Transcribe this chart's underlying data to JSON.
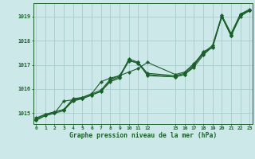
{
  "title": "Graphe pression niveau de la mer (hPa)",
  "bg_color": "#cce8e8",
  "grid_color": "#aacccc",
  "line_color": "#1a5e2a",
  "x_ticks": [
    0,
    1,
    2,
    3,
    4,
    5,
    6,
    7,
    8,
    9,
    10,
    11,
    12,
    15,
    16,
    17,
    18,
    19,
    20,
    21,
    22,
    23
  ],
  "x_tick_labels": [
    "0",
    "1",
    "2",
    "3",
    "4",
    "5",
    "6",
    "7",
    "8",
    "9",
    "10",
    "11",
    "12",
    "15",
    "16",
    "17",
    "18",
    "19",
    "20",
    "21",
    "22",
    "23"
  ],
  "xlim": [
    -0.3,
    23.3
  ],
  "ylim": [
    1014.55,
    1019.55
  ],
  "yticks": [
    1015,
    1016,
    1017,
    1018,
    1019
  ],
  "series": [
    {
      "x": [
        0,
        1,
        2,
        3,
        4,
        5,
        6,
        7,
        8,
        9,
        10,
        11,
        12,
        15,
        16,
        17,
        18,
        19,
        20,
        21,
        22,
        23
      ],
      "y": [
        1014.7,
        1014.9,
        1015.0,
        1015.1,
        1015.55,
        1015.6,
        1015.75,
        1015.9,
        1016.35,
        1016.5,
        1017.15,
        1017.1,
        1016.65,
        1016.55,
        1016.65,
        1017.0,
        1017.45,
        1017.75,
        1019.0,
        1018.25,
        1019.05,
        1019.25
      ]
    },
    {
      "x": [
        0,
        1,
        2,
        3,
        4,
        5,
        6,
        7,
        8,
        9,
        10,
        11,
        12,
        15,
        16,
        17,
        18,
        19,
        20,
        21,
        22,
        23
      ],
      "y": [
        1014.7,
        1014.9,
        1015.0,
        1015.5,
        1015.55,
        1015.65,
        1015.8,
        1016.3,
        1016.45,
        1016.55,
        1017.2,
        1017.05,
        1016.6,
        1016.5,
        1016.6,
        1016.9,
        1017.4,
        1017.75,
        1019.0,
        1018.2,
        1019.1,
        1019.25
      ]
    },
    {
      "x": [
        0,
        1,
        2,
        3,
        4,
        5,
        6,
        7,
        8,
        9,
        10,
        11,
        12,
        15,
        16,
        17,
        18,
        19,
        20,
        21,
        22,
        23
      ],
      "y": [
        1014.8,
        1014.95,
        1015.05,
        1015.15,
        1015.6,
        1015.65,
        1015.8,
        1015.95,
        1016.4,
        1016.55,
        1016.7,
        1016.85,
        1017.1,
        1016.6,
        1016.7,
        1017.05,
        1017.5,
        1017.8,
        1019.05,
        1018.3,
        1019.1,
        1019.3
      ]
    },
    {
      "x": [
        0,
        1,
        2,
        3,
        4,
        5,
        6,
        7,
        8,
        9,
        10,
        11,
        12,
        15,
        16,
        17,
        18,
        19,
        20,
        21,
        22,
        23
      ],
      "y": [
        1014.75,
        1014.95,
        1015.05,
        1015.15,
        1015.5,
        1015.6,
        1015.75,
        1015.9,
        1016.3,
        1016.45,
        1017.25,
        1017.1,
        1016.55,
        1016.5,
        1016.6,
        1016.95,
        1017.55,
        1017.7,
        1019.0,
        1018.2,
        1019.0,
        1019.25
      ]
    }
  ]
}
